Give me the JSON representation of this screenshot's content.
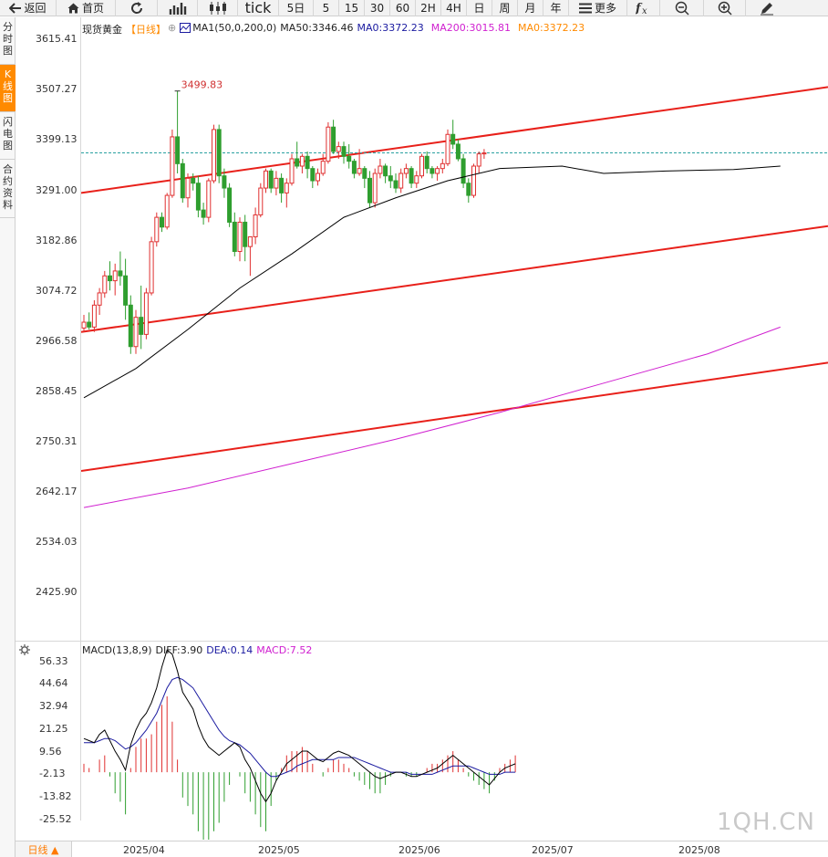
{
  "toolbar": {
    "back": "返回",
    "home": "首页",
    "tick": "tick",
    "periods": [
      "5日",
      "5",
      "15",
      "30",
      "60",
      "2H",
      "4H",
      "日",
      "周",
      "月",
      "年"
    ],
    "more": "更多"
  },
  "sidebar": {
    "tabs": [
      {
        "label": "分时图",
        "active": false
      },
      {
        "label": "K线图",
        "active": true
      },
      {
        "label": "闪电图",
        "active": false
      },
      {
        "label": "合约资料",
        "active": false
      }
    ]
  },
  "legend": {
    "symbol": "现货黄金",
    "period": "【日线】",
    "ma1": "MA1(50,0,200,0)",
    "ma50": "MA50:3346.46",
    "ma0": "MA0:3372.23",
    "ma200": "MA200:3015.81",
    "ma0b": "MA0:3372.23"
  },
  "macd_legend": {
    "name": "MACD(13,8,9)",
    "diff": "DIFF:3.90",
    "dea": "DEA:0.14",
    "macd": "MACD:7.52"
  },
  "price_axis": [
    "3615.41",
    "3507.27",
    "3399.13",
    "3291.00",
    "3182.86",
    "3074.72",
    "2966.58",
    "2858.45",
    "2750.31",
    "2642.17",
    "2534.03",
    "2425.90"
  ],
  "macd_axis": [
    "56.33",
    "44.64",
    "32.94",
    "21.25",
    "9.56",
    "-2.13",
    "-13.82",
    "-25.52"
  ],
  "x_axis": [
    "2025/04",
    "2025/05",
    "2025/06",
    "2025/07",
    "2025/08"
  ],
  "period_button": "日线 ▲",
  "high_label": "3499.83",
  "watermark": "1QH.CN",
  "colors": {
    "up": "#e03030",
    "down": "#2f9e2f",
    "ma50": "#000000",
    "ma200": "#d020d0",
    "channel": "#e8201a",
    "dif": "#000000",
    "dea": "#1a1aa0",
    "orange": "#ff8a00"
  },
  "chart_data": {
    "type": "candlestick",
    "price_range": [
      2372,
      3650
    ],
    "ohlc": [
      [
        3013,
        3040,
        3005,
        3025
      ],
      [
        3025,
        3045,
        3010,
        3015
      ],
      [
        3015,
        3070,
        3005,
        3060
      ],
      [
        3060,
        3095,
        3040,
        3085
      ],
      [
        3085,
        3130,
        3075,
        3120
      ],
      [
        3120,
        3150,
        3090,
        3110
      ],
      [
        3110,
        3145,
        3080,
        3130
      ],
      [
        3130,
        3170,
        3100,
        3120
      ],
      [
        3120,
        3155,
        3030,
        3060
      ],
      [
        3060,
        3080,
        2960,
        2975
      ],
      [
        2975,
        3050,
        2960,
        3035
      ],
      [
        3035,
        3100,
        2970,
        3000
      ],
      [
        3000,
        3095,
        2990,
        3085
      ],
      [
        3085,
        3200,
        3080,
        3190
      ],
      [
        3190,
        3250,
        3180,
        3240
      ],
      [
        3240,
        3250,
        3210,
        3220
      ],
      [
        3220,
        3290,
        3215,
        3285
      ],
      [
        3285,
        3420,
        3280,
        3405
      ],
      [
        3405,
        3499,
        3330,
        3350
      ],
      [
        3350,
        3360,
        3270,
        3280
      ],
      [
        3280,
        3330,
        3260,
        3320
      ],
      [
        3320,
        3330,
        3295,
        3310
      ],
      [
        3310,
        3325,
        3240,
        3255
      ],
      [
        3255,
        3270,
        3225,
        3240
      ],
      [
        3240,
        3320,
        3230,
        3315
      ],
      [
        3315,
        3430,
        3310,
        3420
      ],
      [
        3420,
        3430,
        3310,
        3325
      ],
      [
        3325,
        3340,
        3280,
        3300
      ],
      [
        3300,
        3310,
        3220,
        3230
      ],
      [
        3230,
        3250,
        3160,
        3170
      ],
      [
        3170,
        3240,
        3150,
        3230
      ],
      [
        3230,
        3245,
        3150,
        3180
      ],
      [
        3180,
        3200,
        3120,
        3200
      ],
      [
        3200,
        3260,
        3185,
        3245
      ],
      [
        3245,
        3310,
        3240,
        3300
      ],
      [
        3300,
        3340,
        3290,
        3335
      ],
      [
        3335,
        3340,
        3290,
        3300
      ],
      [
        3300,
        3335,
        3285,
        3320
      ],
      [
        3320,
        3330,
        3270,
        3290
      ],
      [
        3290,
        3320,
        3260,
        3310
      ],
      [
        3310,
        3370,
        3305,
        3360
      ],
      [
        3360,
        3395,
        3340,
        3345
      ],
      [
        3345,
        3370,
        3330,
        3365
      ],
      [
        3365,
        3375,
        3320,
        3340
      ],
      [
        3340,
        3345,
        3300,
        3315
      ],
      [
        3315,
        3340,
        3305,
        3330
      ],
      [
        3330,
        3370,
        3325,
        3355
      ],
      [
        3355,
        3435,
        3350,
        3425
      ],
      [
        3425,
        3440,
        3370,
        3375
      ],
      [
        3375,
        3395,
        3360,
        3385
      ],
      [
        3385,
        3395,
        3350,
        3365
      ],
      [
        3365,
        3390,
        3340,
        3355
      ],
      [
        3355,
        3360,
        3320,
        3330
      ],
      [
        3330,
        3380,
        3325,
        3340
      ],
      [
        3340,
        3345,
        3300,
        3320
      ],
      [
        3320,
        3335,
        3260,
        3270
      ],
      [
        3270,
        3340,
        3260,
        3330
      ],
      [
        3330,
        3360,
        3320,
        3345
      ],
      [
        3345,
        3350,
        3310,
        3325
      ],
      [
        3325,
        3345,
        3300,
        3315
      ],
      [
        3315,
        3330,
        3290,
        3300
      ],
      [
        3300,
        3340,
        3290,
        3330
      ],
      [
        3330,
        3350,
        3320,
        3340
      ],
      [
        3340,
        3345,
        3300,
        3310
      ],
      [
        3310,
        3335,
        3300,
        3325
      ],
      [
        3325,
        3370,
        3320,
        3365
      ],
      [
        3365,
        3375,
        3330,
        3340
      ],
      [
        3340,
        3345,
        3320,
        3330
      ],
      [
        3330,
        3345,
        3315,
        3340
      ],
      [
        3340,
        3360,
        3330,
        3350
      ],
      [
        3350,
        3420,
        3345,
        3410
      ],
      [
        3410,
        3440,
        3380,
        3390
      ],
      [
        3390,
        3400,
        3355,
        3360
      ],
      [
        3360,
        3370,
        3300,
        3310
      ],
      [
        3310,
        3320,
        3270,
        3285
      ],
      [
        3285,
        3350,
        3280,
        3345
      ],
      [
        3345,
        3375,
        3330,
        3370
      ],
      [
        3370,
        3380,
        3360,
        3372
      ]
    ],
    "ma50": [
      [
        0,
        2870
      ],
      [
        10,
        2930
      ],
      [
        20,
        3010
      ],
      [
        30,
        3095
      ],
      [
        40,
        3165
      ],
      [
        50,
        3240
      ],
      [
        60,
        3280
      ],
      [
        70,
        3315
      ],
      [
        80,
        3340
      ],
      [
        92,
        3345
      ],
      [
        100,
        3330
      ],
      [
        112,
        3335
      ],
      [
        125,
        3338
      ],
      [
        134,
        3345
      ]
    ],
    "ma200": [
      [
        0,
        2645
      ],
      [
        20,
        2685
      ],
      [
        40,
        2735
      ],
      [
        60,
        2785
      ],
      [
        80,
        2840
      ],
      [
        100,
        2900
      ],
      [
        120,
        2960
      ],
      [
        134,
        3015
      ]
    ],
    "reference_level": 3372.23,
    "channel_upper": [
      [
        0,
        3290
      ],
      [
        160,
        3507
      ]
    ],
    "channel_mid": [
      [
        0,
        3005
      ],
      [
        160,
        3222
      ]
    ],
    "channel_lower": [
      [
        0,
        2720
      ],
      [
        160,
        2942
      ]
    ],
    "macd_range": [
      -32,
      62
    ],
    "macd_dif": [
      16,
      15,
      14,
      18,
      20,
      15,
      10,
      6,
      1,
      13,
      20,
      25,
      28,
      33,
      40,
      50,
      58,
      56,
      48,
      38,
      34,
      30,
      22,
      16,
      12,
      10,
      8,
      10,
      12,
      14,
      12,
      6,
      2,
      -4,
      -10,
      -14,
      -10,
      -4,
      0,
      4,
      6,
      8,
      10,
      10,
      8,
      6,
      5,
      7,
      9,
      10,
      9,
      8,
      6,
      4,
      2,
      0,
      -2,
      -3,
      -2,
      -1,
      0,
      0,
      -1,
      -2,
      -2,
      -1,
      0,
      1,
      2,
      4,
      6,
      8,
      6,
      4,
      2,
      0,
      -2,
      -4,
      -6,
      -3,
      0,
      2,
      3,
      4
    ],
    "macd_dea": [
      14,
      14,
      14,
      15,
      16,
      16,
      15,
      13,
      11,
      12,
      14,
      17,
      20,
      24,
      28,
      34,
      40,
      44,
      45,
      44,
      42,
      40,
      36,
      32,
      28,
      24,
      20,
      17,
      15,
      14,
      13,
      11,
      9,
      6,
      3,
      0,
      -2,
      -2,
      -1,
      0,
      1,
      3,
      4,
      5,
      6,
      6,
      6,
      6,
      6,
      7,
      7,
      7,
      7,
      6,
      5,
      4,
      3,
      2,
      1,
      0,
      0,
      0,
      0,
      -1,
      -1,
      -1,
      -1,
      -1,
      0,
      1,
      2,
      3,
      3,
      3,
      3,
      2,
      1,
      0,
      -1,
      -1,
      -1,
      0,
      0,
      0
    ],
    "macd_hist": [
      2,
      1,
      0,
      3,
      4,
      -1,
      -5,
      -7,
      -10,
      1,
      6,
      8,
      8,
      9,
      12,
      16,
      18,
      12,
      3,
      -6,
      -8,
      -10,
      -14,
      -16,
      -16,
      -14,
      -12,
      -7,
      -3,
      0,
      -1,
      -5,
      -7,
      -10,
      -13,
      -14,
      -8,
      -2,
      1,
      4,
      5,
      5,
      6,
      5,
      2,
      0,
      -1,
      1,
      3,
      3,
      2,
      1,
      -1,
      -2,
      -3,
      -4,
      -5,
      -5,
      -3,
      -1,
      0,
      0,
      -1,
      -1,
      -1,
      0,
      1,
      2,
      2,
      3,
      4,
      5,
      3,
      1,
      -1,
      -2,
      -3,
      -4,
      -5,
      -2,
      1,
      2,
      3,
      4
    ]
  }
}
